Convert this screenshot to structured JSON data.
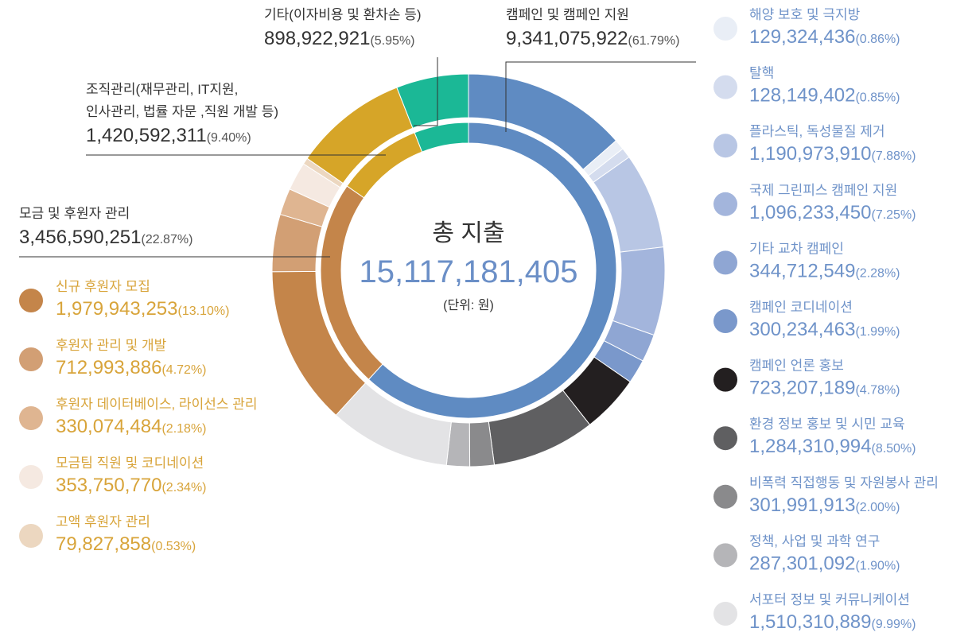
{
  "chart_data": {
    "type": "donut",
    "center_title": "총 지출",
    "total": 15117181405,
    "total_label": "15,117,181,405",
    "unit": "(단위: 원)",
    "inner": {
      "categories": [
        "캠페인 및 캠페인 지원",
        "모금 및 후원자 관리",
        "조직관리(재무관리, IT지원,\n인사관리, 법률 자문 ,직원 개발 등)",
        "기타(이자비용 및 환차손 등)"
      ],
      "values": [
        9341075922,
        3456590251,
        1420592311,
        898922921
      ],
      "value_labels": [
        "9,341,075,922",
        "3,456,590,251",
        "1,420,592,311",
        "898,922,921"
      ],
      "shares": [
        61.79,
        22.87,
        9.4,
        5.95
      ],
      "share_labels": [
        "(61.79%)",
        "(22.87%)",
        "(9.40%)",
        "(5.95%)"
      ],
      "colors": [
        "#5f8bc2",
        "#c4854a",
        "#d6a528",
        "#1bb896"
      ]
    },
    "outer": {
      "categories": [
        null,
        "해양 보호 및 극지방",
        "탈핵",
        "플라스틱, 독성물질 제거",
        "국제 그린피스 캠페인 지원",
        "기타 교차 캠페인",
        "캠페인 코디네이션",
        "캠페인 언론 홍보",
        "환경 정보 홍보 및 시민 교육",
        "비폭력 직접행동 및 자원봉사 관리",
        "정책, 사업 및 과학 연구",
        "서포터 정보 및 커뮤니케이션",
        "신규 후원자 모집",
        "후원자 관리 및 개발",
        "후원자 데이터베이스, 라이선스 관리",
        "모금팀 직원 및 코디네이션",
        "고액 후원자 관리"
      ],
      "values": [
        2044000000,
        129324436,
        128149402,
        1190973910,
        1096233450,
        344712549,
        300234463,
        723207189,
        1284310994,
        301991913,
        287301092,
        1510310889,
        1979943253,
        712993886,
        330074484,
        353750770,
        79827858
      ],
      "value_labels": [
        null,
        "129,324,436",
        "128,149,402",
        "1,190,973,910",
        "1,096,233,450",
        "344,712,549",
        "300,234,463",
        "723,207,189",
        "1,284,310,994",
        "301,991,913",
        "287,301,092",
        "1,510,310,889",
        "1,979,943,253",
        "712,993,886",
        "330,074,484",
        "353,750,770",
        "79,827,858"
      ],
      "shares": [
        null,
        0.86,
        0.85,
        7.88,
        7.25,
        2.28,
        1.99,
        4.78,
        8.5,
        2.0,
        1.9,
        9.99,
        13.1,
        4.72,
        2.18,
        2.34,
        0.53
      ],
      "share_labels": [
        null,
        "(0.86%)",
        "(0.85%)",
        "(7.88%)",
        "(7.25%)",
        "(2.28%)",
        "(1.99%)",
        "(4.78%)",
        "(8.50%)",
        "(2.00%)",
        "(1.90%)",
        "(9.99%)",
        "(13.10%)",
        "(4.72%)",
        "(2.18%)",
        "(2.34%)",
        "(0.53%)"
      ],
      "colors": [
        "#5f8bc2",
        "#e9eef6",
        "#d4dcee",
        "#b8c6e4",
        "#a3b5dc",
        "#8fa6d3",
        "#7a98cb",
        "#231f20",
        "#5f5f61",
        "#8a8a8c",
        "#b5b5b8",
        "#e3e3e5",
        "#c4854a",
        "#d29f74",
        "#dfb591",
        "#f5e9e1",
        "#ecd7c0"
      ]
    }
  }
}
